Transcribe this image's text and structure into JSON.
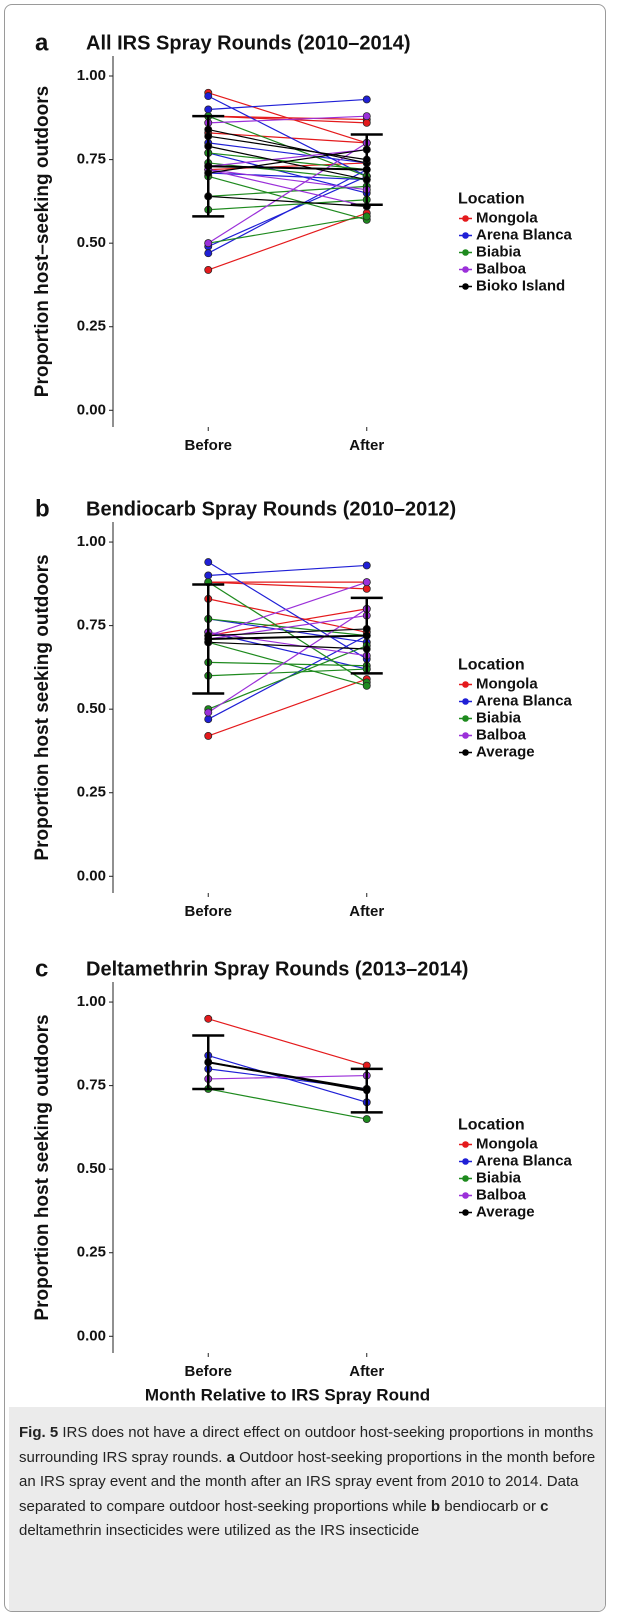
{
  "chart_data": [
    {
      "type": "line",
      "panel": "a",
      "title": "All IRS Spray Rounds (2010–2014)",
      "y_label": "Proportion host–seeking outdoors",
      "categories": [
        "Before",
        "After"
      ],
      "ylim": [
        -0.05,
        1.06
      ],
      "yticks": [
        {
          "value": 0,
          "label": "0.00"
        },
        0.25,
        {
          "value": 0.5,
          "label": "0.50"
        },
        0.75,
        {
          "value": 1,
          "label": "1.00"
        }
      ],
      "legend_title": "Location",
      "legend": "right",
      "series": [
        {
          "name": "Mongola",
          "color": "#e41a1c",
          "lines": [
            [
              0.95,
              0.8
            ],
            [
              0.88,
              0.87
            ],
            [
              0.88,
              0.86
            ],
            [
              0.83,
              0.8
            ],
            [
              0.72,
              0.74
            ],
            [
              0.42,
              0.59
            ]
          ]
        },
        {
          "name": "Arena Blanca",
          "color": "#1f1fd6",
          "lines": [
            [
              0.94,
              0.7
            ],
            [
              0.9,
              0.93
            ],
            [
              0.8,
              0.74
            ],
            [
              0.77,
              0.65
            ],
            [
              0.71,
              0.69
            ],
            [
              0.49,
              0.7
            ],
            [
              0.47,
              0.72
            ]
          ]
        },
        {
          "name": "Biabia",
          "color": "#1e8a1e",
          "lines": [
            [
              0.88,
              0.7
            ],
            [
              0.77,
              0.72
            ],
            [
              0.74,
              0.69
            ],
            [
              0.7,
              0.57
            ],
            [
              0.64,
              0.67
            ],
            [
              0.6,
              0.63
            ],
            [
              0.5,
              0.58
            ]
          ]
        },
        {
          "name": "Balboa",
          "color": "#9b30d9",
          "lines": [
            [
              0.86,
              0.88
            ],
            [
              0.73,
              0.78
            ],
            [
              0.72,
              0.66
            ],
            [
              0.5,
              0.8
            ],
            [
              0.72,
              0.61
            ]
          ]
        },
        {
          "name": "Bioko Island",
          "color": "#000000",
          "lines": [
            [
              0.84,
              0.74
            ],
            [
              0.82,
              0.75
            ],
            [
              0.79,
              0.69
            ],
            [
              0.71,
              0.78
            ],
            [
              0.64,
              0.61
            ]
          ],
          "values": [
            0.73,
            0.72
          ],
          "errors": [
            0.15,
            0.105
          ]
        }
      ]
    },
    {
      "type": "line",
      "panel": "b",
      "title": "Bendiocarb Spray Rounds (2010–2012)",
      "y_label": "Proportion host seeking outdoors",
      "categories": [
        "Before",
        "After"
      ],
      "ylim": [
        -0.05,
        1.06
      ],
      "yticks": [
        {
          "value": 0,
          "label": "0.00"
        },
        0.25,
        {
          "value": 0.5,
          "label": "0.50"
        },
        0.75,
        {
          "value": 1,
          "label": "1.00"
        }
      ],
      "legend_title": "Location",
      "legend": "right",
      "series": [
        {
          "name": "Mongola",
          "color": "#e41a1c",
          "lines": [
            [
              0.88,
              0.88
            ],
            [
              0.88,
              0.86
            ],
            [
              0.83,
              0.73
            ],
            [
              0.72,
              0.8
            ],
            [
              0.42,
              0.59
            ]
          ]
        },
        {
          "name": "Arena Blanca",
          "color": "#1f1fd6",
          "lines": [
            [
              0.94,
              0.65
            ],
            [
              0.9,
              0.93
            ],
            [
              0.77,
              0.7
            ],
            [
              0.73,
              0.62
            ],
            [
              0.47,
              0.72
            ]
          ]
        },
        {
          "name": "Biabia",
          "color": "#1e8a1e",
          "lines": [
            [
              0.88,
              0.58
            ],
            [
              0.77,
              0.72
            ],
            [
              0.7,
              0.57
            ],
            [
              0.64,
              0.63
            ],
            [
              0.6,
              0.62
            ],
            [
              0.5,
              0.69
            ]
          ]
        },
        {
          "name": "Balboa",
          "color": "#9b30d9",
          "lines": [
            [
              0.72,
              0.88
            ],
            [
              0.73,
              0.66
            ],
            [
              0.49,
              0.8
            ],
            [
              0.71,
              0.78
            ]
          ]
        },
        {
          "name": "Average",
          "color": "#000000",
          "lines": [
            [
              0.72,
              0.74
            ],
            [
              0.7,
              0.68
            ]
          ],
          "values": [
            0.71,
            0.72
          ],
          "errors": [
            0.163,
            0.113
          ]
        }
      ]
    },
    {
      "type": "line",
      "panel": "c",
      "title": "Deltamethrin Spray Rounds (2013–2014)",
      "y_label": "Proportion host seeking outdoors",
      "x_label": "Month Relative to IRS Spray Round",
      "categories": [
        "Before",
        "After"
      ],
      "ylim": [
        -0.05,
        1.06
      ],
      "yticks": [
        {
          "value": 0,
          "label": "0.00"
        },
        0.25,
        {
          "value": 0.5,
          "label": "0.50"
        },
        0.75,
        {
          "value": 1,
          "label": "1.00"
        }
      ],
      "legend_title": "Location",
      "legend": "right",
      "series": [
        {
          "name": "Mongola",
          "color": "#e41a1c",
          "lines": [
            [
              0.95,
              0.81
            ]
          ]
        },
        {
          "name": "Arena Blanca",
          "color": "#1f1fd6",
          "lines": [
            [
              0.84,
              0.7
            ],
            [
              0.8,
              0.74
            ]
          ]
        },
        {
          "name": "Biabia",
          "color": "#1e8a1e",
          "lines": [
            [
              0.74,
              0.65
            ]
          ]
        },
        {
          "name": "Balboa",
          "color": "#9b30d9",
          "lines": [
            [
              0.77,
              0.78
            ]
          ]
        },
        {
          "name": "Average",
          "color": "#000000",
          "lines": [
            [
              0.82,
              0.74
            ]
          ],
          "values": [
            0.82,
            0.735
          ],
          "errors": [
            0.08,
            0.065
          ]
        }
      ]
    }
  ],
  "caption": [
    {
      "text": "Fig. 5",
      "bold": true
    },
    {
      "text": " IRS does not have a direct effect on outdoor host-seeking proportions in months surrounding IRS spray rounds. "
    },
    {
      "text": "a",
      "bold": true
    },
    {
      "text": " Outdoor host-seeking proportions in the month before an IRS spray event and the month after an IRS spray event from 2010 to 2014. Data separated to compare outdoor host-seeking proportions while "
    },
    {
      "text": "b",
      "bold": true
    },
    {
      "text": " bendiocarb or "
    },
    {
      "text": "c",
      "bold": true
    },
    {
      "text": " deltamethrin insecticides were utilized as the IRS insecticide"
    }
  ]
}
